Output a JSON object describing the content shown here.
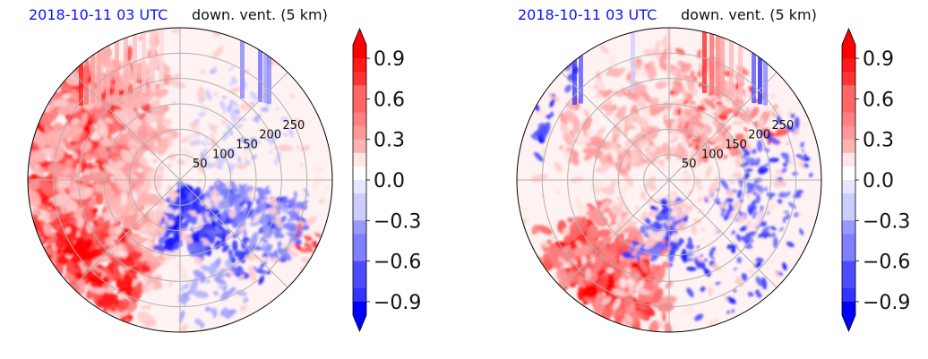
{
  "chart_data": [
    {
      "type": "heatmap",
      "projection": "polar",
      "title_left": "2018-10-11 03 UTC",
      "title_right": "down. vent. (5 km)",
      "radial_ticks": [
        50,
        100,
        150,
        200,
        250
      ],
      "rlim": [
        0,
        300
      ],
      "colorbar": {
        "ticks": [
          0.9,
          0.6,
          0.3,
          0.0,
          -0.3,
          -0.6,
          -0.9
        ],
        "tick_labels": [
          "0.9",
          "0.6",
          "0.3",
          "0.0",
          "−0.3",
          "−0.6",
          "−0.9"
        ],
        "range": [
          -1.0,
          1.0
        ],
        "extend": "both",
        "cmap": "bwr"
      },
      "grid": true
    },
    {
      "type": "heatmap",
      "projection": "polar",
      "title_left": "2018-10-11 03 UTC",
      "title_right": "down. vent. (5 km)",
      "radial_ticks": [
        50,
        100,
        150,
        200,
        250
      ],
      "rlim": [
        0,
        300
      ],
      "colorbar": {
        "ticks": [
          0.9,
          0.6,
          0.3,
          0.0,
          -0.3,
          -0.6,
          -0.9
        ],
        "tick_labels": [
          "0.9",
          "0.6",
          "0.3",
          "0.0",
          "−0.3",
          "−0.6",
          "−0.9"
        ],
        "range": [
          -1.0,
          1.0
        ],
        "extend": "both",
        "cmap": "bwr"
      },
      "grid": true
    }
  ]
}
